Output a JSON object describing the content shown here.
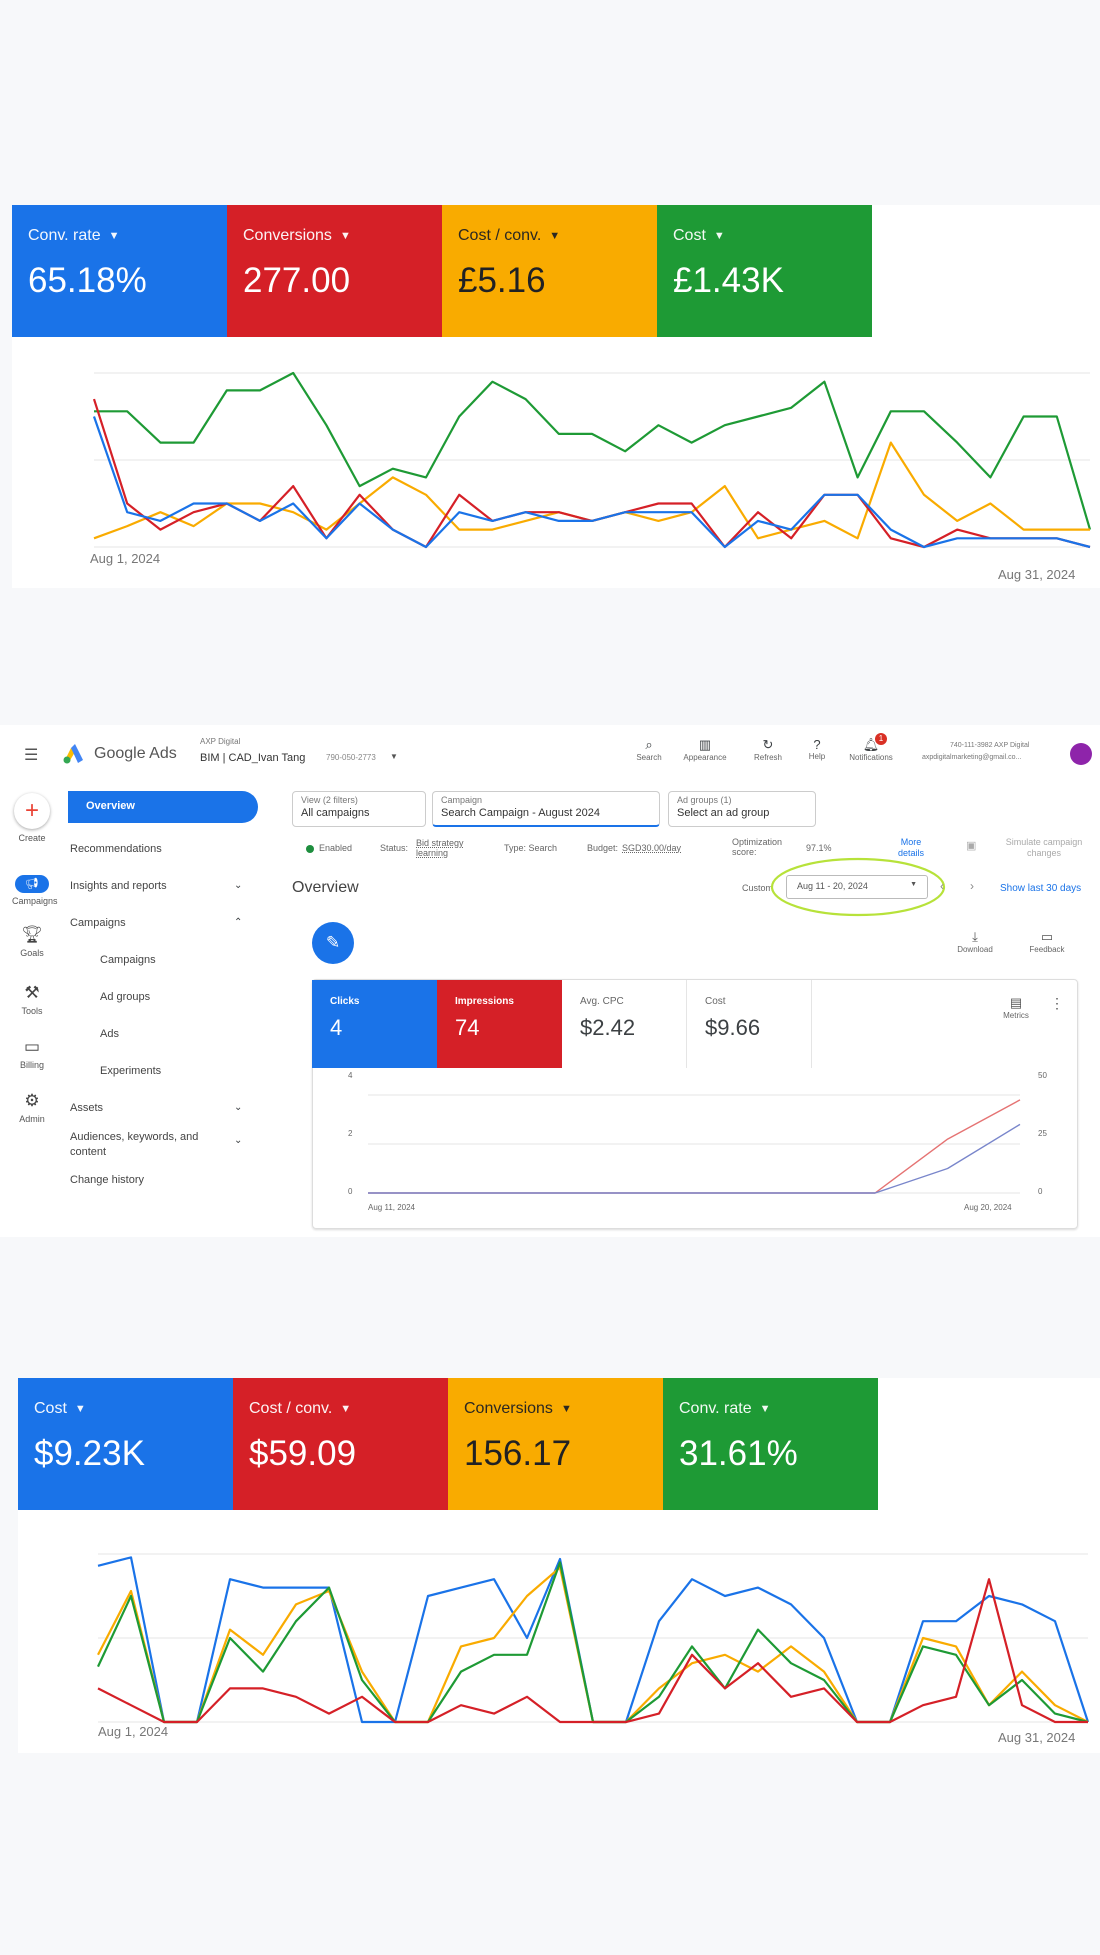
{
  "top_panel": {
    "tiles": [
      {
        "label": "Conv. rate",
        "value": "65.18%",
        "color": "#1a73e8"
      },
      {
        "label": "Conversions",
        "value": "277.00",
        "color": "#d52027"
      },
      {
        "label": "Cost / conv.",
        "value": "£5.16",
        "color": "#f9ab00"
      },
      {
        "label": "Cost",
        "value": "£1.43K",
        "color": "#1e9a35"
      }
    ],
    "x_start_label": "Aug 1, 2024",
    "x_end_label": "Aug 31, 2024"
  },
  "bottom_panel": {
    "tiles": [
      {
        "label": "Cost",
        "value": "$9.23K",
        "color": "#1a73e8"
      },
      {
        "label": "Cost / conv.",
        "value": "$59.09",
        "color": "#d52027"
      },
      {
        "label": "Conversions",
        "value": "156.17",
        "color": "#f9ab00"
      },
      {
        "label": "Conv. rate",
        "value": "31.61%",
        "color": "#1e9a35"
      }
    ],
    "x_start_label": "Aug 1, 2024",
    "x_end_label": "Aug 31, 2024"
  },
  "chart_data": [
    {
      "type": "line",
      "x": [
        1,
        2,
        3,
        4,
        5,
        6,
        7,
        8,
        9,
        10,
        11,
        12,
        13,
        14,
        15,
        16,
        17,
        18,
        19,
        20,
        21,
        22,
        23,
        24,
        25,
        26,
        27,
        28,
        29,
        30,
        31
      ],
      "x_tick_labels": [
        "Aug 1, 2024",
        "Aug 31, 2024"
      ],
      "series": [
        {
          "color": "#1e9a35",
          "values": [
            0.78,
            0.78,
            0.6,
            0.6,
            0.9,
            0.9,
            1.0,
            0.7,
            0.35,
            0.45,
            0.4,
            0.75,
            0.95,
            0.85,
            0.65,
            0.65,
            0.55,
            0.7,
            0.6,
            0.7,
            0.75,
            0.8,
            0.95,
            0.4,
            0.78,
            0.78,
            0.6,
            0.4,
            0.75,
            0.75,
            0.1
          ]
        },
        {
          "color": "#f9ab00",
          "values": [
            0.05,
            0.12,
            0.2,
            0.12,
            0.25,
            0.25,
            0.2,
            0.1,
            0.25,
            0.4,
            0.3,
            0.1,
            0.1,
            0.15,
            0.2,
            0.15,
            0.2,
            0.15,
            0.2,
            0.35,
            0.05,
            0.1,
            0.15,
            0.05,
            0.6,
            0.3,
            0.15,
            0.25,
            0.1,
            0.1,
            0.1
          ]
        },
        {
          "color": "#d52027",
          "values": [
            0.85,
            0.25,
            0.1,
            0.2,
            0.25,
            0.15,
            0.35,
            0.05,
            0.3,
            0.1,
            0.0,
            0.3,
            0.15,
            0.2,
            0.2,
            0.15,
            0.2,
            0.25,
            0.25,
            0.0,
            0.2,
            0.05,
            0.3,
            0.3,
            0.05,
            0.0,
            0.1,
            0.05,
            0.05,
            0.05,
            0.0
          ]
        },
        {
          "color": "#1a73e8",
          "values": [
            0.75,
            0.2,
            0.15,
            0.25,
            0.25,
            0.15,
            0.25,
            0.05,
            0.25,
            0.1,
            0.0,
            0.2,
            0.15,
            0.2,
            0.15,
            0.15,
            0.2,
            0.2,
            0.2,
            0.0,
            0.15,
            0.1,
            0.3,
            0.3,
            0.1,
            0.0,
            0.05,
            0.05,
            0.05,
            0.05,
            0.0
          ]
        }
      ]
    },
    {
      "type": "line",
      "x_tick_labels": [
        "Aug 11, 2024",
        "Aug 20, 2024"
      ],
      "x": [
        11,
        12,
        13,
        14,
        15,
        16,
        17,
        18,
        19,
        20
      ],
      "yticks_left": [
        "4",
        "2",
        "0"
      ],
      "yticks_right": [
        "50",
        "25",
        "0"
      ],
      "ylim": [
        0,
        4
      ],
      "series": [
        {
          "color": "#e57373",
          "values": [
            0,
            0,
            0,
            0,
            0,
            0,
            0,
            0,
            2.2,
            3.8
          ]
        },
        {
          "color": "#7986cb",
          "values": [
            0,
            0,
            0,
            0,
            0,
            0,
            0,
            0,
            1.0,
            2.8
          ]
        }
      ]
    },
    {
      "type": "line",
      "x": [
        1,
        2,
        3,
        4,
        5,
        6,
        7,
        8,
        9,
        10,
        11,
        12,
        13,
        14,
        15,
        16,
        17,
        18,
        19,
        20,
        21,
        22,
        23,
        24,
        25,
        26,
        27,
        28,
        29,
        30,
        31
      ],
      "x_tick_labels": [
        "Aug 1, 2024",
        "Aug 31, 2024"
      ],
      "series": [
        {
          "color": "#1a73e8",
          "values": [
            0.93,
            0.98,
            0.0,
            0.0,
            0.85,
            0.8,
            0.8,
            0.8,
            0.0,
            0.0,
            0.75,
            0.8,
            0.85,
            0.5,
            0.97,
            0.0,
            0.0,
            0.6,
            0.85,
            0.75,
            0.8,
            0.7,
            0.5,
            0.0,
            0.0,
            0.6,
            0.6,
            0.75,
            0.7,
            0.6,
            0.0
          ]
        },
        {
          "color": "#f9ab00",
          "values": [
            0.4,
            0.78,
            0.0,
            0.0,
            0.55,
            0.4,
            0.7,
            0.78,
            0.3,
            0.0,
            0.0,
            0.45,
            0.5,
            0.75,
            0.92,
            0.0,
            0.0,
            0.2,
            0.35,
            0.4,
            0.3,
            0.45,
            0.3,
            0.0,
            0.0,
            0.5,
            0.45,
            0.1,
            0.3,
            0.1,
            0.0
          ]
        },
        {
          "color": "#1e9a35",
          "values": [
            0.33,
            0.75,
            0.0,
            0.0,
            0.5,
            0.3,
            0.6,
            0.8,
            0.25,
            0.0,
            0.0,
            0.3,
            0.4,
            0.4,
            0.95,
            0.0,
            0.0,
            0.15,
            0.45,
            0.2,
            0.55,
            0.35,
            0.25,
            0.0,
            0.0,
            0.45,
            0.4,
            0.1,
            0.25,
            0.05,
            0.0
          ]
        },
        {
          "color": "#d52027",
          "values": [
            0.2,
            0.1,
            0.0,
            0.0,
            0.2,
            0.2,
            0.15,
            0.05,
            0.15,
            0.0,
            0.0,
            0.1,
            0.05,
            0.15,
            0.0,
            0.0,
            0.0,
            0.05,
            0.4,
            0.2,
            0.35,
            0.15,
            0.2,
            0.0,
            0.0,
            0.1,
            0.15,
            0.85,
            0.1,
            0.0,
            0.0
          ]
        }
      ]
    }
  ],
  "ads": {
    "app_name": "Google Ads",
    "account_parent": "AXP Digital",
    "account_name": "BIM | CAD_Ivan Tang",
    "account_id": "790-050-2773",
    "top_icons": [
      "Search",
      "Appearance",
      "Refresh",
      "Help",
      "Notifications"
    ],
    "notification_count": "1",
    "user_line1": "740-111-3982 AXP Digital",
    "user_line2": "axpdigitalmarketing@gmail.co...",
    "sidebar_rail": [
      "Create",
      "Campaigns",
      "Goals",
      "Tools",
      "Billing",
      "Admin"
    ],
    "nav": {
      "overview": "Overview",
      "recommendations": "Recommendations",
      "insights": "Insights and reports",
      "campaigns_group": "Campaigns",
      "campaigns": "Campaigns",
      "ad_groups": "Ad groups",
      "ads": "Ads",
      "experiments": "Experiments",
      "assets": "Assets",
      "audiences": "Audiences, keywords, and content",
      "change_history": "Change history"
    },
    "view": {
      "caption": "View (2 filters)",
      "value": "All campaigns"
    },
    "campaign": {
      "caption": "Campaign",
      "value": "Search Campaign - August 2024"
    },
    "ad_groups": {
      "caption": "Ad groups (1)",
      "value": "Select an ad group"
    },
    "status_row": {
      "enabled": "Enabled",
      "status_label": "Status:",
      "status_value": "Bid strategy learning",
      "type": "Type: Search",
      "budget_label": "Budget:",
      "budget_value": "SGD30.00/day",
      "opt_label": "Optimization score:",
      "opt_value": "97.1%",
      "more_details": "More details",
      "simulate": "Simulate campaign changes"
    },
    "page_title": "Overview",
    "date": {
      "custom": "Custom",
      "range": "Aug 11 - 20, 2024",
      "show_last": "Show last 30 days"
    },
    "download": "Download",
    "feedback": "Feedback",
    "metrics_label": "Metrics",
    "metric_tiles": [
      {
        "label": "Clicks",
        "value": "4",
        "color": "#1a73e8"
      },
      {
        "label": "Impressions",
        "value": "74",
        "color": "#d52027"
      },
      {
        "label": "Avg. CPC",
        "value": "$2.42",
        "color": "#ffffff"
      },
      {
        "label": "Cost",
        "value": "$9.66",
        "color": "#ffffff"
      }
    ]
  }
}
